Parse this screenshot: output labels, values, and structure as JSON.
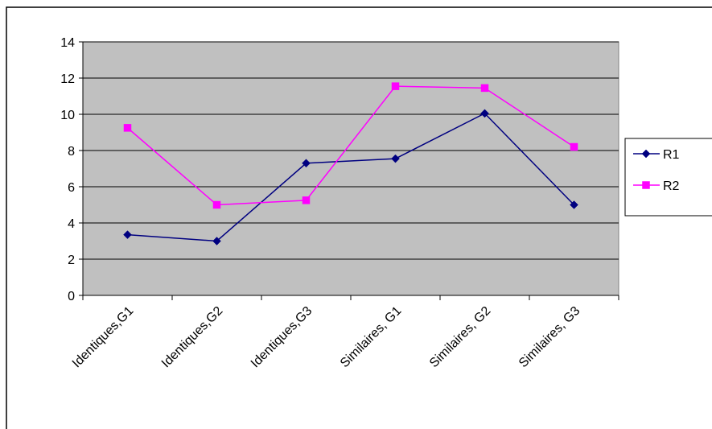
{
  "chart_data": {
    "type": "line",
    "categories": [
      "Identiques,G1",
      "Identiques,G2",
      "Identiques,G3",
      "Similaires, G1",
      "Similaires, G2",
      "Similaires, G3"
    ],
    "series": [
      {
        "name": "R1",
        "values": [
          3.35,
          3.0,
          7.3,
          7.55,
          10.05,
          5.0
        ],
        "color": "#000080",
        "marker": "diamond"
      },
      {
        "name": "R2",
        "values": [
          9.25,
          5.0,
          5.25,
          11.55,
          11.45,
          8.2
        ],
        "color": "#FF00FF",
        "marker": "square"
      }
    ],
    "title": "",
    "xlabel": "",
    "ylabel": "",
    "ylim": [
      0,
      14
    ],
    "yticks": [
      "0",
      "2",
      "4",
      "6",
      "8",
      "10",
      "12",
      "14"
    ],
    "grid": true,
    "plot_background": "#C0C0C0",
    "legend_position": "right"
  }
}
